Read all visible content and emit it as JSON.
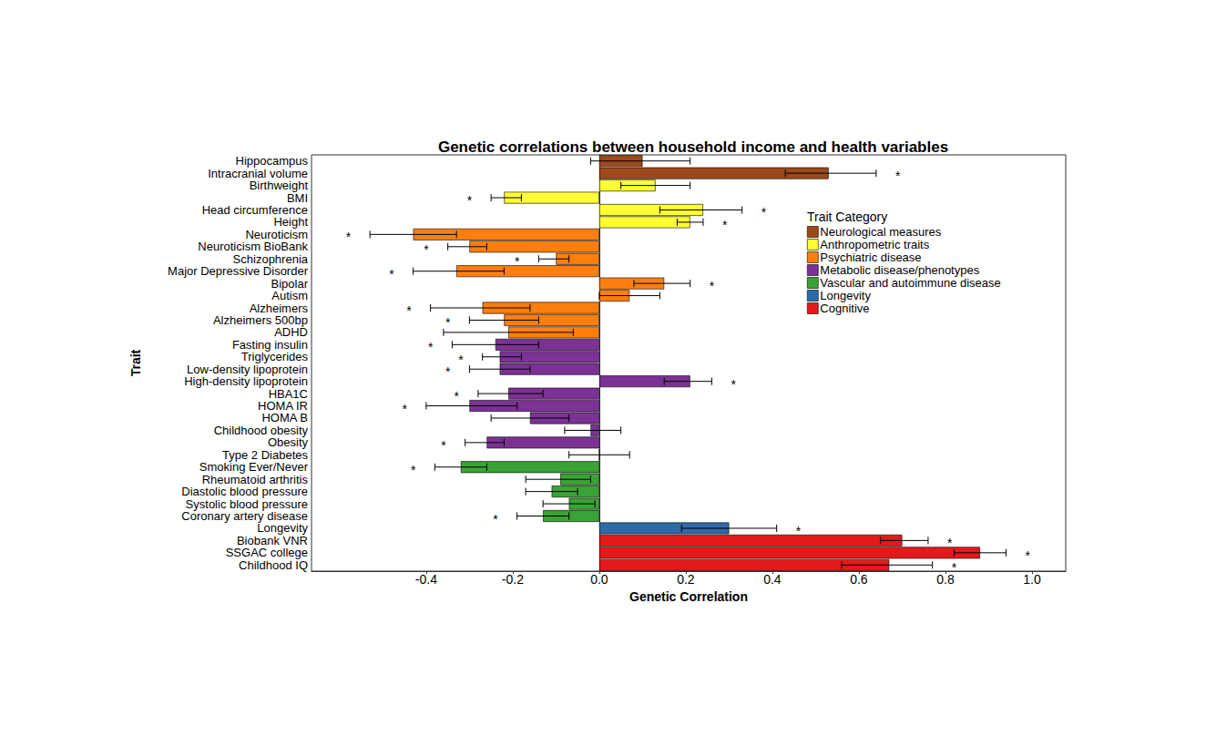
{
  "chart_data": {
    "type": "bar",
    "orientation": "horizontal",
    "title": "Genetic correlations between household income and health variables",
    "x_label": "Genetic Correlation",
    "y_label": "Trait",
    "legend_title": "Trait Category",
    "legend": "top-right",
    "grid": false,
    "categories": [
      "Hippocampus",
      "Intracranial volume",
      "Birthweight",
      "BMI",
      "Head circumference",
      "Height",
      "Neuroticism",
      "Neuroticism BioBank",
      "Schizophrenia",
      "Major Depressive Disorder",
      "Bipolar",
      "Autism",
      "Alzheimers",
      "Alzheimers 500bp",
      "ADHD",
      "Fasting insulin",
      "Triglycerides",
      "Low-density lipoprotein",
      "High-density lipoprotein",
      "HBA1C",
      "HOMA IR",
      "HOMA B",
      "Childhood obesity",
      "Obesity",
      "Type 2 Diabetes",
      "Smoking Ever/Never",
      "Rheumatoid arthritis",
      "Diastolic blood pressure",
      "Systolic blood pressure",
      "Coronary artery disease",
      "Longevity",
      "Biobank VNR",
      "SSGAC college",
      "Childhood IQ"
    ],
    "series": [
      {
        "name": "Neurological measures",
        "color": "#9c4a1c",
        "values": [
          0.1,
          0.53,
          null,
          null,
          null,
          null,
          null,
          null,
          null,
          null,
          null,
          null,
          null,
          null,
          null,
          null,
          null,
          null,
          null,
          null,
          null,
          null,
          null,
          null,
          null,
          null,
          null,
          null,
          null,
          null,
          null,
          null,
          null,
          null
        ]
      },
      {
        "name": "Anthropometric traits",
        "color": "#ffff33",
        "values": [
          null,
          null,
          0.13,
          -0.22,
          0.24,
          0.21,
          null,
          null,
          null,
          null,
          null,
          null,
          null,
          null,
          null,
          null,
          null,
          null,
          null,
          null,
          null,
          null,
          null,
          null,
          null,
          null,
          null,
          null,
          null,
          null,
          null,
          null,
          null,
          null
        ]
      },
      {
        "name": "Psychiatric disease",
        "color": "#ff7f0e",
        "values": [
          null,
          null,
          null,
          null,
          null,
          null,
          -0.43,
          -0.3,
          -0.1,
          -0.33,
          0.15,
          0.07,
          -0.27,
          -0.22,
          -0.21,
          null,
          null,
          null,
          null,
          null,
          null,
          null,
          null,
          null,
          null,
          null,
          null,
          null,
          null,
          null,
          null,
          null,
          null,
          null
        ]
      },
      {
        "name": "Metabolic disease/phenotypes",
        "color": "#7b3294",
        "values": [
          null,
          null,
          null,
          null,
          null,
          null,
          null,
          null,
          null,
          null,
          null,
          null,
          null,
          null,
          null,
          -0.24,
          -0.23,
          -0.23,
          0.21,
          -0.21,
          -0.3,
          -0.16,
          -0.02,
          -0.26,
          0.0,
          null,
          null,
          null,
          null,
          null,
          null,
          null,
          null,
          null
        ]
      },
      {
        "name": "Vascular and autoimmune disease",
        "color": "#3aa335",
        "values": [
          null,
          null,
          null,
          null,
          null,
          null,
          null,
          null,
          null,
          null,
          null,
          null,
          null,
          null,
          null,
          null,
          null,
          null,
          null,
          null,
          null,
          null,
          null,
          null,
          null,
          -0.32,
          -0.09,
          -0.11,
          -0.07,
          -0.13,
          null,
          null,
          null,
          null
        ]
      },
      {
        "name": "Longevity",
        "color": "#2f6aa6",
        "values": [
          null,
          null,
          null,
          null,
          null,
          null,
          null,
          null,
          null,
          null,
          null,
          null,
          null,
          null,
          null,
          null,
          null,
          null,
          null,
          null,
          null,
          null,
          null,
          null,
          null,
          null,
          null,
          null,
          null,
          null,
          0.3,
          null,
          null,
          null
        ]
      },
      {
        "name": "Cognitive",
        "color": "#e31a1c",
        "values": [
          null,
          null,
          null,
          null,
          null,
          null,
          null,
          null,
          null,
          null,
          null,
          null,
          null,
          null,
          null,
          null,
          null,
          null,
          null,
          null,
          null,
          null,
          null,
          null,
          null,
          null,
          null,
          null,
          null,
          null,
          null,
          0.7,
          0.88,
          0.67
        ]
      }
    ],
    "error_low": [
      -0.02,
      0.43,
      0.05,
      -0.25,
      0.14,
      0.18,
      -0.53,
      -0.35,
      -0.14,
      -0.43,
      0.08,
      0.0,
      -0.39,
      -0.3,
      -0.36,
      -0.34,
      -0.27,
      -0.3,
      0.15,
      -0.28,
      -0.4,
      -0.25,
      -0.08,
      -0.31,
      -0.07,
      -0.38,
      -0.17,
      -0.17,
      -0.13,
      -0.19,
      0.19,
      0.65,
      0.82,
      0.56
    ],
    "error_high": [
      0.21,
      0.64,
      0.21,
      -0.18,
      0.33,
      0.24,
      -0.33,
      -0.26,
      -0.07,
      -0.22,
      0.21,
      0.14,
      -0.16,
      -0.14,
      -0.06,
      -0.14,
      -0.18,
      -0.16,
      0.26,
      -0.13,
      -0.19,
      -0.07,
      0.05,
      -0.22,
      0.07,
      -0.26,
      -0.02,
      -0.05,
      -0.01,
      -0.07,
      0.41,
      0.76,
      0.94,
      0.77
    ],
    "significance": [
      null,
      "*",
      null,
      "*",
      "*",
      "*",
      "*",
      "*",
      "*",
      "*",
      "*",
      null,
      "*",
      "*",
      null,
      "*",
      "*",
      "*",
      "*",
      "*",
      "*",
      null,
      null,
      "*",
      null,
      "*",
      null,
      null,
      null,
      "*",
      "*",
      "*",
      "*",
      "*"
    ],
    "xlim": [
      -0.665,
      1.078
    ],
    "xticks": [
      -0.4,
      -0.2,
      {
        "value": 0,
        "label": "0.0"
      },
      0.2,
      0.4,
      0.6,
      0.8,
      {
        "value": 1,
        "label": "1.0"
      }
    ]
  }
}
